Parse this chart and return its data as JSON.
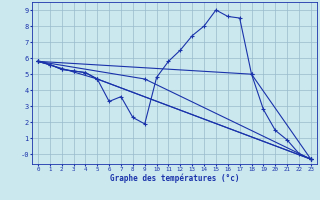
{
  "xlabel": "Graphe des températures (°c)",
  "xlim": [
    -0.5,
    23.5
  ],
  "ylim": [
    -0.6,
    9.5
  ],
  "xticks": [
    0,
    1,
    2,
    3,
    4,
    5,
    6,
    7,
    8,
    9,
    10,
    11,
    12,
    13,
    14,
    15,
    16,
    17,
    18,
    19,
    20,
    21,
    22,
    23
  ],
  "yticks": [
    0,
    1,
    2,
    3,
    4,
    5,
    6,
    7,
    8,
    9
  ],
  "ytick_labels": [
    "-0",
    "1",
    "2",
    "3",
    "4",
    "5",
    "6",
    "7",
    "8",
    "9"
  ],
  "background_color": "#cce8ef",
  "line_color": "#1a33aa",
  "grid_color": "#99bbcc",
  "main_line": {
    "x": [
      0,
      1,
      2,
      3,
      4,
      5,
      6,
      7,
      8,
      9,
      10,
      11,
      12,
      13,
      14,
      15,
      16,
      17,
      18,
      19,
      20,
      21,
      22,
      23
    ],
    "y": [
      5.8,
      5.6,
      5.3,
      5.2,
      5.1,
      4.7,
      3.3,
      3.6,
      2.3,
      1.9,
      4.8,
      5.8,
      6.5,
      7.4,
      8.0,
      9.0,
      8.6,
      8.5,
      5.0,
      2.8,
      1.5,
      0.9,
      0.05,
      -0.3
    ]
  },
  "fan_lines": [
    {
      "x": [
        0,
        1,
        2,
        3,
        4,
        5,
        23
      ],
      "y": [
        5.8,
        5.6,
        5.3,
        5.2,
        5.1,
        4.7,
        -0.3
      ]
    },
    {
      "x": [
        0,
        5,
        23
      ],
      "y": [
        5.8,
        4.7,
        -0.3
      ]
    },
    {
      "x": [
        0,
        9,
        23
      ],
      "y": [
        5.8,
        4.7,
        -0.3
      ]
    },
    {
      "x": [
        0,
        18,
        23
      ],
      "y": [
        5.8,
        5.0,
        -0.3
      ]
    }
  ]
}
